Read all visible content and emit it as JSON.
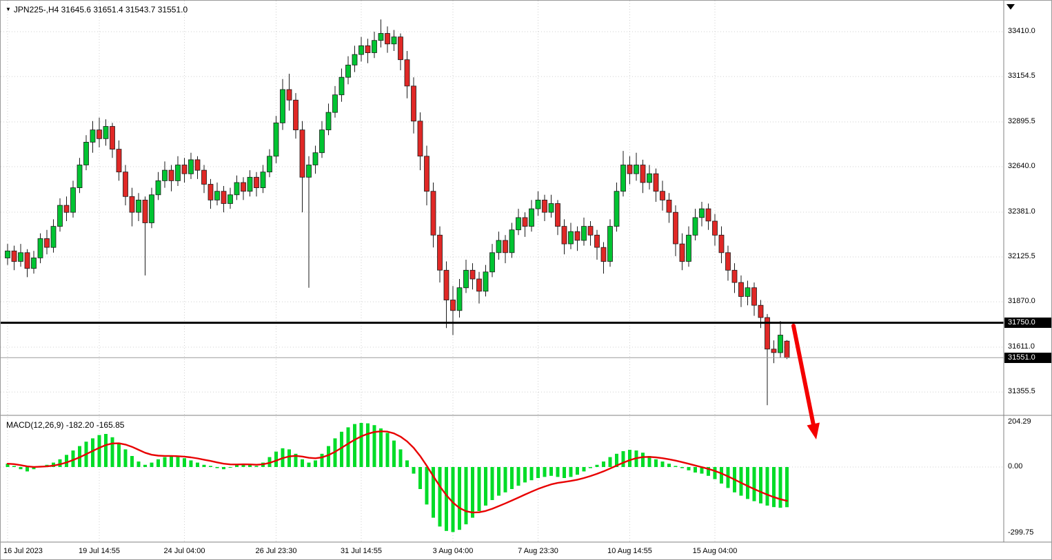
{
  "header": {
    "dropdown_icon": "▼",
    "title": "JPN225-,H4 31645.6 31651.4 31543.7 31551.0"
  },
  "macd": {
    "label": "MACD(12,26,9) -182.20 -165.85"
  },
  "price_axis": {
    "labels": [
      "33410.0",
      "33154.5",
      "32895.5",
      "32640.0",
      "32381.0",
      "32125.5",
      "31870.0",
      "31611.0",
      "31355.5"
    ],
    "hline_badge": "31750.0",
    "price_badge": "31551.0"
  },
  "macd_axis": {
    "labels": [
      "204.29",
      "0.00",
      "-299.75"
    ]
  },
  "time_axis": {
    "labels": [
      "16 Jul 2023",
      "19 Jul 14:55",
      "24 Jul 04:00",
      "26 Jul 23:30",
      "31 Jul 14:55",
      "3 Aug 04:00",
      "7 Aug 23:30",
      "10 Aug 14:55",
      "15 Aug 04:00"
    ]
  },
  "colors": {
    "up_candle": "#00c432",
    "down_candle": "#e02826",
    "candle_outline": "#1a1a1a",
    "macd_histogram": "#00dc28",
    "macd_signal": "#e80000",
    "hline": "#000000",
    "arrow": "#f40000",
    "grid": "#cfcfcf",
    "border": "#808080",
    "badge_bg": "#000000",
    "badge_text": "#ffffff"
  },
  "chart_data": {
    "type": "candlestick+macd",
    "symbol": "JPN225-",
    "timeframe": "H4",
    "last_ohlc": {
      "open": 31645.6,
      "high": 31651.4,
      "low": 31543.7,
      "close": 31551.0
    },
    "current_price": 31551.0,
    "horizontal_line": 31750.0,
    "ylim_price": [
      31240,
      33590
    ],
    "macd_params": "12,26,9",
    "macd_value": -182.2,
    "macd_signal_value": -165.85,
    "ylim_macd": [
      -299.75,
      204.29
    ],
    "time_tick_indices": [
      0,
      14,
      27,
      41,
      54,
      68,
      81,
      95,
      108
    ],
    "ohlc": [
      [
        32120,
        32200,
        32080,
        32160
      ],
      [
        32160,
        32190,
        32050,
        32100
      ],
      [
        32100,
        32200,
        32070,
        32150
      ],
      [
        32150,
        32170,
        32010,
        32060
      ],
      [
        32060,
        32160,
        32030,
        32120
      ],
      [
        32120,
        32260,
        32090,
        32230
      ],
      [
        32230,
        32280,
        32140,
        32180
      ],
      [
        32180,
        32340,
        32150,
        32300
      ],
      [
        32300,
        32460,
        32270,
        32420
      ],
      [
        32420,
        32470,
        32330,
        32380
      ],
      [
        32380,
        32560,
        32350,
        32520
      ],
      [
        32520,
        32690,
        32490,
        32650
      ],
      [
        32650,
        32820,
        32620,
        32780
      ],
      [
        32780,
        32900,
        32720,
        32850
      ],
      [
        32850,
        32920,
        32750,
        32800
      ],
      [
        32800,
        32910,
        32760,
        32870
      ],
      [
        32870,
        32890,
        32690,
        32740
      ],
      [
        32740,
        32790,
        32560,
        32610
      ],
      [
        32610,
        32650,
        32420,
        32470
      ],
      [
        32470,
        32520,
        32300,
        32380
      ],
      [
        32380,
        32490,
        32330,
        32450
      ],
      [
        32450,
        32470,
        32020,
        32320
      ],
      [
        32320,
        32520,
        32290,
        32480
      ],
      [
        32480,
        32610,
        32450,
        32560
      ],
      [
        32560,
        32670,
        32520,
        32620
      ],
      [
        32620,
        32650,
        32500,
        32560
      ],
      [
        32560,
        32700,
        32530,
        32650
      ],
      [
        32650,
        32690,
        32550,
        32600
      ],
      [
        32600,
        32720,
        32570,
        32680
      ],
      [
        32680,
        32700,
        32570,
        32620
      ],
      [
        32620,
        32650,
        32490,
        32540
      ],
      [
        32540,
        32570,
        32400,
        32450
      ],
      [
        32450,
        32550,
        32420,
        32500
      ],
      [
        32500,
        32530,
        32380,
        32430
      ],
      [
        32430,
        32520,
        32400,
        32480
      ],
      [
        32480,
        32590,
        32450,
        32550
      ],
      [
        32550,
        32580,
        32450,
        32500
      ],
      [
        32500,
        32620,
        32470,
        32580
      ],
      [
        32580,
        32610,
        32470,
        32520
      ],
      [
        32520,
        32650,
        32490,
        32610
      ],
      [
        32610,
        32740,
        32580,
        32700
      ],
      [
        32700,
        32930,
        32660,
        32890
      ],
      [
        32890,
        33140,
        32850,
        33080
      ],
      [
        33080,
        33170,
        32960,
        33020
      ],
      [
        33020,
        33060,
        32800,
        32850
      ],
      [
        32850,
        32900,
        32380,
        32580
      ],
      [
        32580,
        32700,
        31950,
        32650
      ],
      [
        32650,
        32760,
        32600,
        32720
      ],
      [
        32720,
        32900,
        32690,
        32850
      ],
      [
        32850,
        33000,
        32820,
        32950
      ],
      [
        32950,
        33100,
        32920,
        33050
      ],
      [
        33050,
        33200,
        33010,
        33150
      ],
      [
        33150,
        33270,
        33110,
        33220
      ],
      [
        33220,
        33330,
        33180,
        33280
      ],
      [
        33280,
        33380,
        33240,
        33330
      ],
      [
        33330,
        33370,
        33230,
        33290
      ],
      [
        33290,
        33410,
        33260,
        33360
      ],
      [
        33360,
        33480,
        33320,
        33400
      ],
      [
        33400,
        33440,
        33290,
        33340
      ],
      [
        33340,
        33420,
        33300,
        33380
      ],
      [
        33380,
        33400,
        33190,
        33250
      ],
      [
        33250,
        33300,
        33030,
        33100
      ],
      [
        33100,
        33150,
        32830,
        32900
      ],
      [
        32900,
        32950,
        32620,
        32700
      ],
      [
        32700,
        32760,
        32420,
        32500
      ],
      [
        32500,
        32550,
        32180,
        32250
      ],
      [
        32250,
        32300,
        31980,
        32050
      ],
      [
        32050,
        32100,
        31720,
        31880
      ],
      [
        31880,
        31960,
        31680,
        31820
      ],
      [
        31820,
        32000,
        31780,
        31950
      ],
      [
        31950,
        32110,
        31920,
        32050
      ],
      [
        32050,
        32090,
        31940,
        32000
      ],
      [
        32000,
        32040,
        31860,
        31930
      ],
      [
        31930,
        32080,
        31900,
        32040
      ],
      [
        32040,
        32200,
        32010,
        32150
      ],
      [
        32150,
        32270,
        32110,
        32220
      ],
      [
        32220,
        32250,
        32090,
        32150
      ],
      [
        32150,
        32320,
        32120,
        32280
      ],
      [
        32280,
        32400,
        32250,
        32350
      ],
      [
        32350,
        32380,
        32240,
        32300
      ],
      [
        32300,
        32450,
        32270,
        32400
      ],
      [
        32400,
        32500,
        32360,
        32450
      ],
      [
        32450,
        32480,
        32330,
        32380
      ],
      [
        32380,
        32480,
        32350,
        32430
      ],
      [
        32430,
        32450,
        32250,
        32300
      ],
      [
        32300,
        32340,
        32140,
        32200
      ],
      [
        32200,
        32320,
        32170,
        32270
      ],
      [
        32270,
        32300,
        32160,
        32220
      ],
      [
        32220,
        32350,
        32190,
        32300
      ],
      [
        32300,
        32330,
        32190,
        32250
      ],
      [
        32250,
        32280,
        32110,
        32180
      ],
      [
        32180,
        32210,
        32030,
        32100
      ],
      [
        32100,
        32340,
        32070,
        32300
      ],
      [
        32300,
        32550,
        32270,
        32500
      ],
      [
        32500,
        32730,
        32470,
        32650
      ],
      [
        32650,
        32700,
        32540,
        32600
      ],
      [
        32600,
        32720,
        32560,
        32650
      ],
      [
        32650,
        32680,
        32490,
        32550
      ],
      [
        32550,
        32650,
        32510,
        32600
      ],
      [
        32600,
        32630,
        32440,
        32500
      ],
      [
        32500,
        32560,
        32390,
        32450
      ],
      [
        32450,
        32490,
        32320,
        32380
      ],
      [
        32380,
        32420,
        32130,
        32200
      ],
      [
        32200,
        32260,
        32050,
        32100
      ],
      [
        32100,
        32300,
        32070,
        32250
      ],
      [
        32250,
        32400,
        32220,
        32350
      ],
      [
        32350,
        32440,
        32300,
        32400
      ],
      [
        32400,
        32430,
        32280,
        32330
      ],
      [
        32330,
        32370,
        32190,
        32250
      ],
      [
        32250,
        32300,
        32090,
        32150
      ],
      [
        32150,
        32190,
        31990,
        32050
      ],
      [
        32050,
        32090,
        31920,
        31980
      ],
      [
        31980,
        32020,
        31840,
        31900
      ],
      [
        31900,
        31990,
        31850,
        31950
      ],
      [
        31950,
        31980,
        31790,
        31850
      ],
      [
        31850,
        31880,
        31720,
        31780
      ],
      [
        31780,
        31800,
        31280,
        31600
      ],
      [
        31600,
        31650,
        31520,
        31580
      ],
      [
        31580,
        31760,
        31550,
        31680
      ],
      [
        31645.6,
        31651.4,
        31543.7,
        31551.0
      ]
    ],
    "macd_histogram": [
      15,
      5,
      -10,
      -20,
      -10,
      5,
      10,
      20,
      35,
      55,
      75,
      95,
      115,
      130,
      145,
      150,
      135,
      110,
      80,
      50,
      25,
      10,
      20,
      35,
      45,
      50,
      45,
      40,
      30,
      20,
      10,
      5,
      -5,
      -10,
      0,
      10,
      15,
      10,
      5,
      20,
      45,
      70,
      85,
      80,
      60,
      35,
      20,
      30,
      60,
      95,
      130,
      160,
      180,
      195,
      200,
      198,
      190,
      175,
      155,
      120,
      80,
      30,
      -30,
      -100,
      -170,
      -230,
      -270,
      -290,
      -295,
      -285,
      -260,
      -230,
      -200,
      -175,
      -150,
      -130,
      -115,
      -100,
      -85,
      -70,
      -60,
      -50,
      -45,
      -40,
      -45,
      -50,
      -45,
      -35,
      -20,
      -5,
      10,
      25,
      45,
      60,
      72,
      78,
      75,
      65,
      50,
      35,
      25,
      15,
      5,
      -5,
      -15,
      -25,
      -30,
      -40,
      -55,
      -75,
      -95,
      -115,
      -130,
      -145,
      -155,
      -165,
      -175,
      -182,
      -185,
      -182.2
    ]
  }
}
